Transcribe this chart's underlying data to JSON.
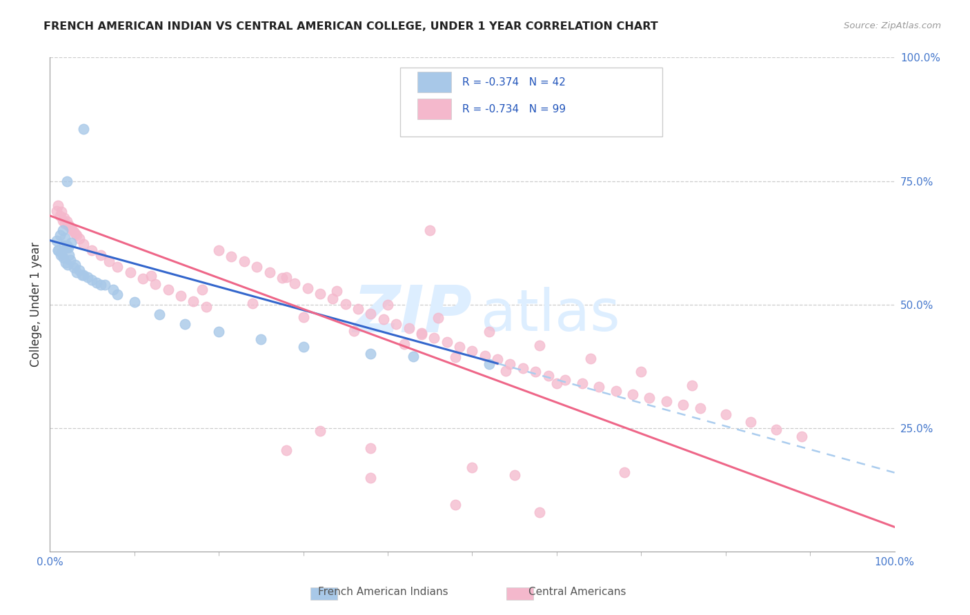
{
  "title": "FRENCH AMERICAN INDIAN VS CENTRAL AMERICAN COLLEGE, UNDER 1 YEAR CORRELATION CHART",
  "source": "Source: ZipAtlas.com",
  "ylabel": "College, Under 1 year",
  "right_yticks": [
    "100.0%",
    "75.0%",
    "50.0%",
    "25.0%"
  ],
  "right_ytick_vals": [
    1.0,
    0.75,
    0.5,
    0.25
  ],
  "legend_blue_R": "R = -0.374",
  "legend_blue_N": "N = 42",
  "legend_pink_R": "R = -0.734",
  "legend_pink_N": "N = 99",
  "legend_label_blue": "French American Indians",
  "legend_label_pink": "Central Americans",
  "blue_color": "#a8c8e8",
  "pink_color": "#f4b8cc",
  "blue_line_color": "#3366cc",
  "pink_line_color": "#ee6688",
  "dashed_line_color": "#aaccee",
  "watermark_zip": "ZIP",
  "watermark_atlas": "atlas",
  "blue_x": [
    0.008,
    0.012,
    0.015,
    0.018,
    0.02,
    0.022,
    0.025,
    0.01,
    0.013,
    0.016,
    0.019,
    0.021,
    0.024,
    0.028,
    0.032,
    0.038,
    0.045,
    0.055,
    0.065,
    0.075,
    0.01,
    0.014,
    0.017,
    0.02,
    0.023,
    0.03,
    0.035,
    0.04,
    0.05,
    0.06,
    0.08,
    0.1,
    0.13,
    0.16,
    0.2,
    0.25,
    0.3,
    0.38,
    0.43,
    0.52,
    0.04,
    0.02
  ],
  "blue_y": [
    0.63,
    0.64,
    0.65,
    0.635,
    0.62,
    0.615,
    0.625,
    0.61,
    0.6,
    0.595,
    0.585,
    0.58,
    0.59,
    0.575,
    0.565,
    0.56,
    0.555,
    0.545,
    0.54,
    0.53,
    0.61,
    0.605,
    0.62,
    0.615,
    0.6,
    0.58,
    0.57,
    0.56,
    0.55,
    0.54,
    0.52,
    0.505,
    0.48,
    0.46,
    0.445,
    0.43,
    0.415,
    0.4,
    0.395,
    0.38,
    0.855,
    0.75
  ],
  "pink_x": [
    0.008,
    0.012,
    0.015,
    0.018,
    0.022,
    0.025,
    0.028,
    0.032,
    0.01,
    0.014,
    0.017,
    0.02,
    0.023,
    0.026,
    0.03,
    0.035,
    0.04,
    0.05,
    0.06,
    0.07,
    0.08,
    0.095,
    0.11,
    0.125,
    0.14,
    0.155,
    0.17,
    0.185,
    0.2,
    0.215,
    0.23,
    0.245,
    0.26,
    0.275,
    0.29,
    0.305,
    0.32,
    0.335,
    0.35,
    0.365,
    0.38,
    0.395,
    0.41,
    0.425,
    0.44,
    0.455,
    0.47,
    0.485,
    0.5,
    0.515,
    0.53,
    0.545,
    0.56,
    0.575,
    0.59,
    0.61,
    0.63,
    0.65,
    0.67,
    0.69,
    0.71,
    0.73,
    0.75,
    0.77,
    0.8,
    0.83,
    0.86,
    0.89,
    0.12,
    0.18,
    0.24,
    0.3,
    0.36,
    0.42,
    0.48,
    0.54,
    0.6,
    0.28,
    0.34,
    0.4,
    0.46,
    0.52,
    0.58,
    0.64,
    0.7,
    0.76,
    0.45,
    0.5,
    0.55,
    0.28,
    0.38,
    0.48,
    0.58,
    0.68,
    0.44,
    0.38,
    0.32
  ],
  "pink_y": [
    0.69,
    0.68,
    0.67,
    0.665,
    0.66,
    0.655,
    0.648,
    0.64,
    0.7,
    0.688,
    0.675,
    0.668,
    0.66,
    0.652,
    0.643,
    0.633,
    0.622,
    0.61,
    0.6,
    0.588,
    0.577,
    0.565,
    0.553,
    0.541,
    0.53,
    0.518,
    0.507,
    0.496,
    0.61,
    0.598,
    0.587,
    0.576,
    0.565,
    0.554,
    0.543,
    0.533,
    0.522,
    0.512,
    0.501,
    0.491,
    0.481,
    0.471,
    0.461,
    0.452,
    0.442,
    0.433,
    0.424,
    0.415,
    0.406,
    0.397,
    0.389,
    0.38,
    0.372,
    0.364,
    0.356,
    0.348,
    0.34,
    0.333,
    0.325,
    0.318,
    0.311,
    0.304,
    0.297,
    0.29,
    0.278,
    0.262,
    0.247,
    0.233,
    0.558,
    0.53,
    0.502,
    0.475,
    0.447,
    0.42,
    0.393,
    0.366,
    0.34,
    0.555,
    0.527,
    0.5,
    0.473,
    0.445,
    0.418,
    0.391,
    0.364,
    0.337,
    0.65,
    0.17,
    0.155,
    0.205,
    0.15,
    0.095,
    0.08,
    0.16,
    0.44,
    0.21,
    0.245
  ]
}
